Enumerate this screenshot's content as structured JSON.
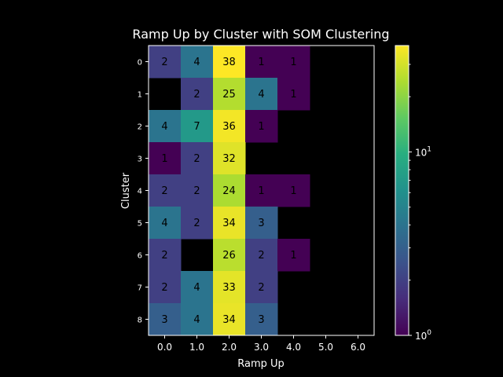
{
  "chart_data": {
    "type": "heatmap",
    "title": "Ramp Up by Cluster with SOM Clustering",
    "xlabel": "Ramp Up",
    "ylabel": "Cluster",
    "x_categories": [
      "0.0",
      "1.0",
      "2.0",
      "3.0",
      "4.0",
      "5.0",
      "6.0"
    ],
    "y_categories": [
      "0",
      "1",
      "2",
      "3",
      "4",
      "5",
      "6",
      "7",
      "8"
    ],
    "values": [
      [
        2,
        4,
        38,
        1,
        1,
        null,
        null
      ],
      [
        null,
        2,
        25,
        4,
        1,
        null,
        null
      ],
      [
        4,
        7,
        36,
        1,
        null,
        null,
        null
      ],
      [
        1,
        2,
        32,
        null,
        null,
        null,
        null
      ],
      [
        2,
        2,
        24,
        1,
        1,
        null,
        null
      ],
      [
        4,
        2,
        34,
        3,
        null,
        null,
        null
      ],
      [
        2,
        null,
        26,
        2,
        1,
        null,
        null
      ],
      [
        2,
        4,
        33,
        2,
        null,
        null,
        null
      ],
      [
        3,
        4,
        34,
        3,
        null,
        null,
        null
      ]
    ],
    "colorscale": "viridis",
    "color_scale_type": "log",
    "color_range": [
      1,
      38
    ],
    "colorbar_ticks": [
      {
        "value": 1,
        "label": "10",
        "exp": "0"
      },
      {
        "value": 10,
        "label": "10",
        "exp": "1"
      }
    ],
    "empty_cell_color": "#000000"
  }
}
